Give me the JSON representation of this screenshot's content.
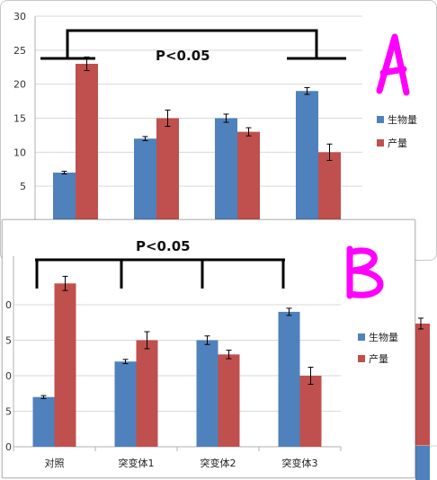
{
  "colors": {
    "biomass": "#4f81bd",
    "yield": "#c0504d",
    "grid": "#d9d9d9",
    "axis": "#b0b0b0",
    "marker": "#ff00ff",
    "bracket": "#000000"
  },
  "chart_data": [
    {
      "type": "bar",
      "categories": [
        "对照",
        "突变体1",
        "突变体2",
        "突变体3"
      ],
      "series": [
        {
          "name": "生物量",
          "values": [
            7,
            12,
            15,
            19
          ],
          "errors": [
            0.2,
            0.3,
            0.6,
            0.5
          ]
        },
        {
          "name": "产量",
          "values": [
            23,
            15,
            13,
            10
          ],
          "errors": [
            1.0,
            1.2,
            0.6,
            1.2
          ]
        }
      ],
      "ylim": [
        0,
        30
      ],
      "yticks": [
        "5",
        "10",
        "15",
        "20",
        "25",
        "30"
      ],
      "grid": true,
      "legend": "right",
      "annotation": "P<0.05",
      "panel_label": "A"
    },
    {
      "type": "bar",
      "categories": [
        "对照",
        "突变体1",
        "突变体2",
        "突变体3"
      ],
      "series": [
        {
          "name": "生物量",
          "values": [
            7,
            12,
            15,
            19
          ],
          "errors": [
            0.2,
            0.3,
            0.6,
            0.5
          ]
        },
        {
          "name": "产量",
          "values": [
            23,
            15,
            13,
            10
          ],
          "errors": [
            1.0,
            1.2,
            0.6,
            1.2
          ]
        }
      ],
      "ylim": [
        0,
        25
      ],
      "yticks": [
        "0",
        "5",
        "0",
        "5",
        "0"
      ],
      "grid": true,
      "legend": "right",
      "annotation": "P<0.05",
      "panel_label": "B"
    }
  ]
}
